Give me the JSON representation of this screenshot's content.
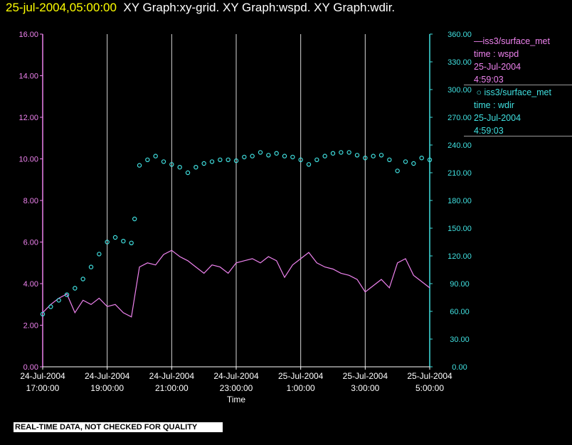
{
  "header": {
    "timestamp": "25-jul-2004,05:00:00",
    "titles": "XY Graph:xy-grid.  XY Graph:wspd.  XY Graph:wdir."
  },
  "legend": {
    "wspd": {
      "name": "iss3/surface_met",
      "line1": "time : wspd",
      "line2": "25-Jul-2004",
      "line3": "4:59:03"
    },
    "wdir": {
      "name": "iss3/surface_met",
      "line1": "time : wdir",
      "line2": "25-Jul-2004",
      "line3": "4:59:03"
    }
  },
  "footer": {
    "disclaimer": "REAL-TIME DATA, NOT CHECKED FOR QUALITY"
  },
  "chart_data": {
    "type": "line",
    "xlabel": "Time",
    "x_range_hours": [
      17.0,
      29.0
    ],
    "x_ticks": [
      {
        "hour": 17,
        "date": "24-Jul-2004",
        "time": "17:00:00"
      },
      {
        "hour": 19,
        "date": "24-Jul-2004",
        "time": "19:00:00"
      },
      {
        "hour": 21,
        "date": "24-Jul-2004",
        "time": "21:00:00"
      },
      {
        "hour": 23,
        "date": "24-Jul-2004",
        "time": "23:00:00"
      },
      {
        "hour": 25,
        "date": "25-Jul-2004",
        "time": "1:00:00"
      },
      {
        "hour": 27,
        "date": "25-Jul-2004",
        "time": "3:00:00"
      },
      {
        "hour": 29,
        "date": "25-Jul-2004",
        "time": "5:00:00"
      }
    ],
    "y_left": {
      "range": [
        0,
        16
      ],
      "ticks": [
        "0.00",
        "2.00",
        "4.00",
        "6.00",
        "8.00",
        "10.00",
        "12.00",
        "14.00",
        "16.00"
      ],
      "color": "#ee82ee"
    },
    "y_right": {
      "range": [
        0,
        360
      ],
      "ticks": [
        "0.00",
        "30.00",
        "60.00",
        "90.00",
        "120.00",
        "150.00",
        "180.00",
        "210.00",
        "240.00",
        "270.00",
        "300.00",
        "330.00",
        "360.00"
      ],
      "color": "#40e0e0"
    },
    "grid": "vertical",
    "series": [
      {
        "name": "iss3/surface_met",
        "variable": "wspd",
        "axis": "left",
        "style": "line",
        "color": "#ee82ee",
        "x": [
          17.0,
          17.25,
          17.5,
          17.75,
          18.0,
          18.25,
          18.5,
          18.75,
          19.0,
          19.25,
          19.5,
          19.75,
          20.0,
          20.25,
          20.5,
          20.75,
          21.0,
          21.25,
          21.5,
          21.75,
          22.0,
          22.25,
          22.5,
          22.75,
          23.0,
          23.25,
          23.5,
          23.75,
          24.0,
          24.25,
          24.5,
          24.75,
          25.0,
          25.25,
          25.5,
          25.75,
          26.0,
          26.25,
          26.5,
          26.75,
          27.0,
          27.25,
          27.5,
          27.75,
          28.0,
          28.25,
          28.5,
          28.75,
          29.0
        ],
        "y": [
          2.6,
          3.0,
          3.3,
          3.5,
          2.6,
          3.2,
          3.0,
          3.3,
          2.9,
          3.0,
          2.6,
          2.4,
          4.8,
          5.0,
          4.9,
          5.4,
          5.6,
          5.3,
          5.1,
          4.8,
          4.5,
          4.9,
          4.8,
          4.5,
          5.0,
          5.1,
          5.2,
          5.0,
          5.3,
          5.1,
          4.3,
          4.9,
          5.2,
          5.5,
          5.0,
          4.8,
          4.7,
          4.5,
          4.4,
          4.2,
          3.6,
          3.9,
          4.2,
          3.8,
          5.0,
          5.2,
          4.4,
          4.1,
          3.8
        ]
      },
      {
        "name": "iss3/surface_met",
        "variable": "wdir",
        "axis": "right",
        "style": "markers",
        "color": "#40e0e0",
        "x": [
          17.0,
          17.25,
          17.5,
          17.75,
          18.0,
          18.25,
          18.5,
          18.75,
          19.0,
          19.25,
          19.5,
          19.75,
          19.85,
          20.0,
          20.25,
          20.5,
          20.75,
          21.0,
          21.25,
          21.5,
          21.75,
          22.0,
          22.25,
          22.5,
          22.75,
          23.0,
          23.25,
          23.5,
          23.75,
          24.0,
          24.25,
          24.5,
          24.75,
          25.0,
          25.25,
          25.5,
          25.75,
          26.0,
          26.25,
          26.5,
          26.75,
          27.0,
          27.25,
          27.5,
          27.75,
          28.0,
          28.25,
          28.5,
          28.75,
          29.0
        ],
        "y": [
          57,
          65,
          72,
          78,
          85,
          95,
          108,
          122,
          135,
          140,
          136,
          134,
          160,
          218,
          224,
          228,
          222,
          219,
          216,
          210,
          216,
          220,
          222,
          224,
          224,
          223,
          227,
          228,
          232,
          229,
          231,
          228,
          227,
          224,
          219,
          224,
          228,
          231,
          232,
          232,
          229,
          226,
          228,
          229,
          224,
          212,
          222,
          220,
          226,
          224
        ]
      }
    ]
  }
}
